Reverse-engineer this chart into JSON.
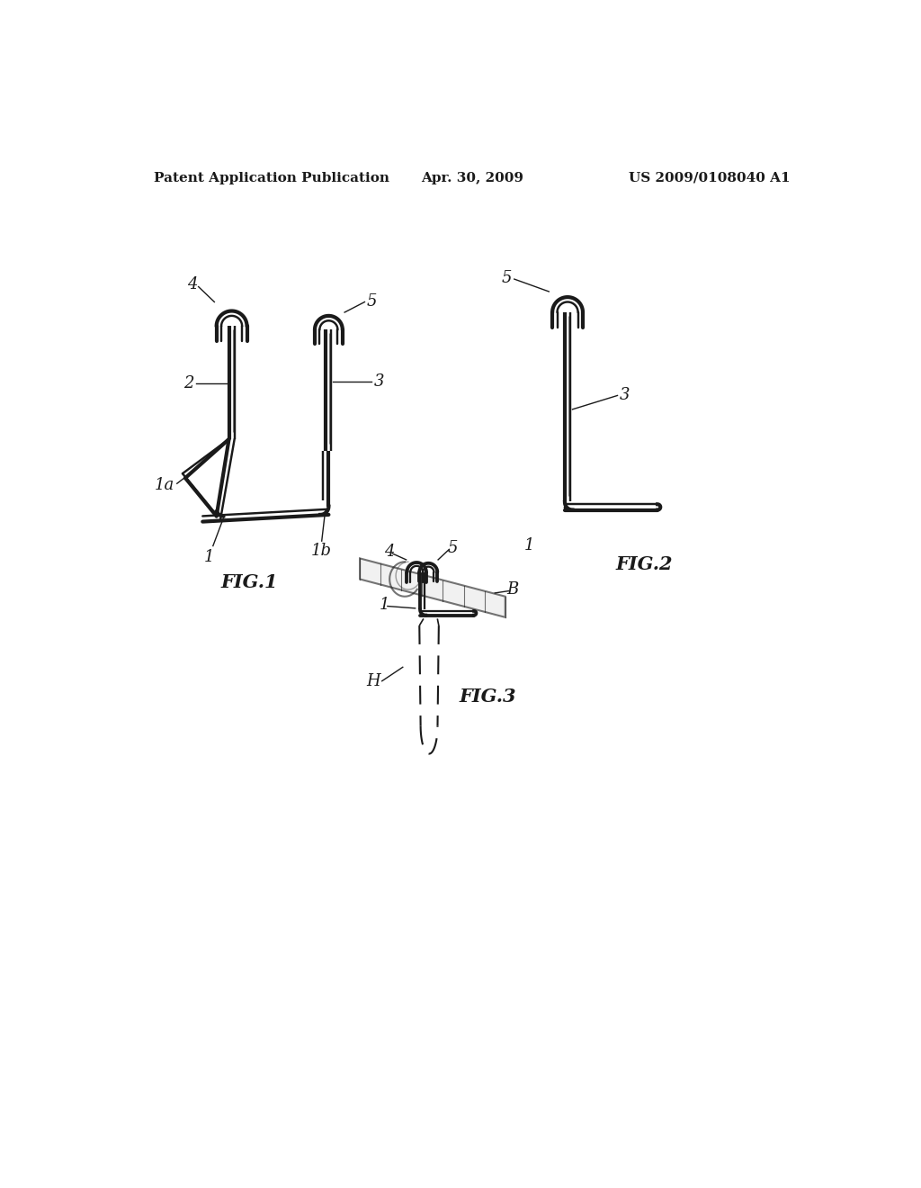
{
  "background_color": "#ffffff",
  "header_left": "Patent Application Publication",
  "header_center": "Apr. 30, 2009",
  "header_right": "US 2009/0108040 A1",
  "fig1_label": "FIG.1",
  "fig2_label": "FIG.2",
  "fig3_label": "FIG.3",
  "line_color": "#1a1a1a",
  "line_width": 2.5,
  "thin_line": 1.2,
  "label_fontsize": 13,
  "header_fontsize": 11
}
